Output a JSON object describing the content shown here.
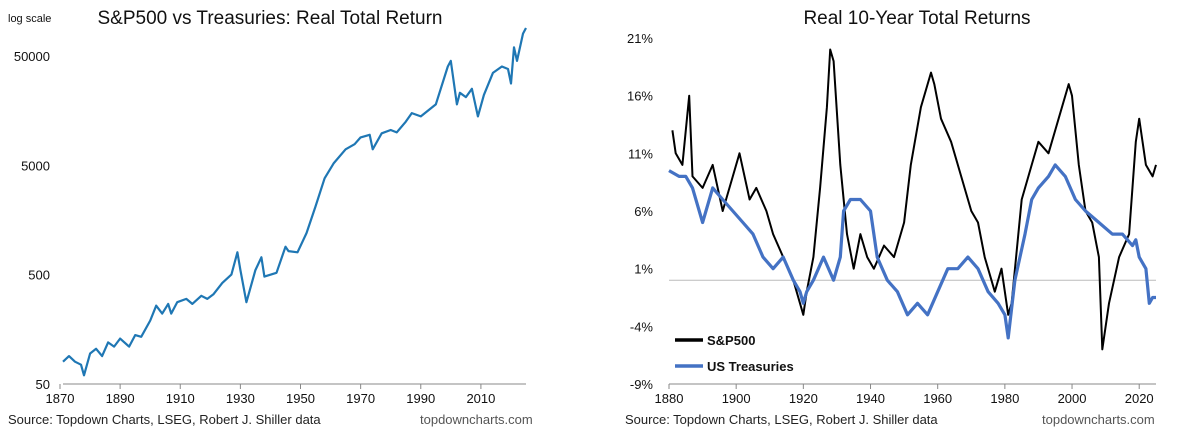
{
  "chart_data": [
    {
      "type": "line",
      "title": "S&P500 vs Treasuries: Real Total Return",
      "scale_note": "log scale",
      "xlabel": "",
      "ylabel": "",
      "y_scale": "log",
      "xlim": [
        1871,
        2025
      ],
      "ylim": [
        50,
        90000
      ],
      "x_ticks": [
        1870,
        1890,
        1910,
        1930,
        1950,
        1970,
        1990,
        2010
      ],
      "y_ticks": [
        50,
        500,
        5000,
        50000
      ],
      "y_tick_labels": [
        "50",
        "500",
        "5000",
        "50000"
      ],
      "grid": false,
      "legend": "none",
      "color": "#1f77b4",
      "series": [
        {
          "x": [
            1871,
            1873,
            1875,
            1877,
            1878,
            1880,
            1882,
            1884,
            1886,
            1888,
            1890,
            1893,
            1895,
            1897,
            1900,
            1902,
            1904,
            1906,
            1907,
            1909,
            1912,
            1914,
            1917,
            1919,
            1921,
            1924,
            1927,
            1929,
            1930,
            1932,
            1933,
            1935,
            1937,
            1938,
            1942,
            1945,
            1946,
            1949,
            1952,
            1955,
            1958,
            1961,
            1965,
            1968,
            1970,
            1973,
            1974,
            1977,
            1980,
            1982,
            1985,
            1987,
            1990,
            1995,
            1999,
            2000,
            2002,
            2003,
            2005,
            2007,
            2009,
            2011,
            2014,
            2017,
            2019,
            2020,
            2021,
            2022,
            2024,
            2025
          ],
          "values": [
            80,
            90,
            80,
            75,
            60,
            95,
            105,
            90,
            120,
            110,
            130,
            110,
            140,
            135,
            190,
            260,
            220,
            270,
            220,
            280,
            300,
            270,
            320,
            300,
            330,
            420,
            500,
            800,
            550,
            280,
            350,
            550,
            720,
            480,
            520,
            900,
            820,
            800,
            1200,
            2100,
            3800,
            5200,
            7000,
            7800,
            9000,
            9500,
            7000,
            9800,
            10500,
            10000,
            12500,
            15000,
            14000,
            18000,
            40000,
            45000,
            18000,
            23000,
            21000,
            25000,
            14000,
            22000,
            35000,
            40000,
            38000,
            28000,
            60000,
            45000,
            80000,
            90000
          ]
        }
      ]
    },
    {
      "type": "line",
      "title": "Real 10-Year Total Returns",
      "xlabel": "",
      "ylabel": "",
      "xlim": [
        1880,
        2025
      ],
      "ylim": [
        -9,
        21
      ],
      "x_ticks": [
        1880,
        1900,
        1920,
        1940,
        1960,
        1980,
        2000,
        2020
      ],
      "y_ticks": [
        -9,
        -4,
        1,
        6,
        11,
        16,
        21
      ],
      "y_tick_labels": [
        "-9%",
        "-4%",
        "1%",
        "6%",
        "11%",
        "16%",
        "21%"
      ],
      "zero_line": 0,
      "grid": false,
      "legend": "bottom-left",
      "series": [
        {
          "name": "S&P500",
          "color": "#000000",
          "x": [
            1881,
            1882,
            1884,
            1886,
            1887,
            1890,
            1893,
            1896,
            1899,
            1901,
            1904,
            1906,
            1909,
            1911,
            1914,
            1917,
            1919,
            1920,
            1921,
            1923,
            1925,
            1927,
            1928,
            1929,
            1931,
            1933,
            1935,
            1937,
            1939,
            1941,
            1944,
            1947,
            1950,
            1952,
            1955,
            1958,
            1959,
            1961,
            1964,
            1967,
            1970,
            1972,
            1974,
            1977,
            1979,
            1981,
            1982,
            1985,
            1988,
            1990,
            1993,
            1996,
            1999,
            2000,
            2002,
            2004,
            2006,
            2008,
            2009,
            2011,
            2014,
            2017,
            2019,
            2020,
            2022,
            2024,
            2025
          ],
          "values": [
            13,
            11,
            10,
            16,
            9,
            8,
            10,
            6,
            9,
            11,
            7,
            8,
            6,
            4,
            2,
            0,
            -2,
            -3,
            -1,
            2,
            8,
            15,
            20,
            19,
            10,
            4,
            1,
            4,
            2,
            1,
            3,
            2,
            5,
            10,
            15,
            18,
            17,
            14,
            12,
            9,
            6,
            5,
            2,
            -1,
            1,
            -3,
            -2,
            7,
            10,
            12,
            11,
            14,
            17,
            16,
            10,
            6,
            5,
            2,
            -6,
            -2,
            2,
            4,
            12,
            14,
            10,
            9,
            10
          ]
        },
        {
          "name": "US Treasuries",
          "color": "#4472c4",
          "x": [
            1880,
            1883,
            1885,
            1887,
            1890,
            1893,
            1896,
            1899,
            1902,
            1905,
            1908,
            1911,
            1914,
            1917,
            1919,
            1920,
            1921,
            1923,
            1926,
            1929,
            1931,
            1932,
            1934,
            1937,
            1940,
            1942,
            1945,
            1948,
            1951,
            1954,
            1957,
            1960,
            1963,
            1966,
            1969,
            1972,
            1975,
            1978,
            1980,
            1981,
            1983,
            1986,
            1988,
            1990,
            1993,
            1995,
            1998,
            2001,
            2004,
            2008,
            2012,
            2015,
            2018,
            2019,
            2020,
            2022,
            2023,
            2024,
            2025
          ],
          "values": [
            9.5,
            9,
            9,
            8,
            5,
            8,
            7,
            6,
            5,
            4,
            2,
            1,
            2,
            0,
            -1,
            -2,
            -1,
            0,
            2,
            0,
            2,
            6,
            7,
            7,
            6,
            2,
            0,
            -1,
            -3,
            -2,
            -3,
            -1,
            1,
            1,
            2,
            1,
            -1,
            -2,
            -3,
            -5,
            0,
            4,
            7,
            8,
            9,
            10,
            9,
            7,
            6,
            5,
            4,
            4,
            3,
            3.5,
            2,
            1,
            -2,
            -1.5,
            -1.5
          ]
        }
      ]
    }
  ],
  "footer": {
    "left_source": "Source: Topdown Charts, LSEG, Robert J. Shiller data",
    "left_brand": "topdowncharts.com",
    "right_source": "Source: Topdown Charts, LSEG, Robert J. Shiller data",
    "right_brand": "topdowncharts.com"
  }
}
